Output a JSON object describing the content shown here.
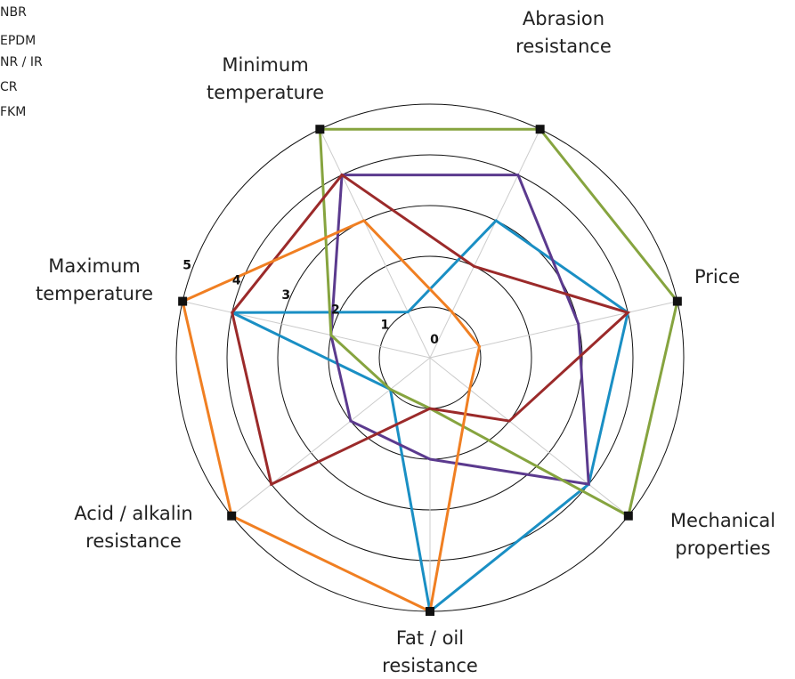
{
  "chart_data": {
    "type": "radar",
    "categories": [
      [
        "Minimum",
        "temperature"
      ],
      [
        "Abrasion",
        "resistance"
      ],
      [
        "Price"
      ],
      [
        "Mechanical",
        "properties"
      ],
      [
        "Fat / oil",
        "resistance"
      ],
      [
        "Acid / alkalin",
        "resistance"
      ],
      [
        "Maximum",
        "temperature"
      ]
    ],
    "rlim": [
      0,
      5
    ],
    "rticks": [
      0,
      1,
      2,
      3,
      4,
      5
    ],
    "series": [
      {
        "name": "NBR",
        "color": "#1a8fc4",
        "values": [
          1,
          3,
          4,
          4,
          5,
          1,
          4
        ]
      },
      {
        "name": "EPDM",
        "color": "#5b3a8e",
        "values": [
          4,
          4,
          3,
          4,
          2,
          2,
          2
        ]
      },
      {
        "name": "NR / IR",
        "color": "#86a43f",
        "values": [
          5,
          5,
          5,
          5,
          1,
          1,
          2
        ]
      },
      {
        "name": "CR",
        "color": "#9b2a2a",
        "values": [
          4,
          2,
          4,
          2,
          1,
          4,
          4
        ]
      },
      {
        "name": "FKM",
        "color": "#f07f22",
        "values": [
          3,
          1,
          1,
          1,
          5,
          5,
          5
        ]
      }
    ]
  }
}
